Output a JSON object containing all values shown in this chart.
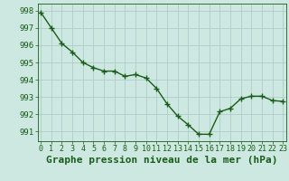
{
  "x": [
    0,
    1,
    2,
    3,
    4,
    5,
    6,
    7,
    8,
    9,
    10,
    11,
    12,
    13,
    14,
    15,
    16,
    17,
    18,
    19,
    20,
    21,
    22,
    23
  ],
  "y": [
    997.9,
    997.0,
    996.1,
    995.6,
    995.0,
    994.7,
    994.5,
    994.5,
    994.2,
    994.3,
    994.1,
    993.5,
    992.6,
    991.9,
    991.4,
    990.85,
    990.85,
    992.15,
    992.35,
    992.9,
    993.05,
    993.05,
    992.8,
    992.75
  ],
  "line_color": "#1a5c1a",
  "marker": "+",
  "marker_size": 4,
  "marker_lw": 1.0,
  "line_width": 1.0,
  "bg_color": "#cce8e0",
  "grid_color": "#b0ccc8",
  "xlabel": "Graphe pression niveau de la mer (hPa)",
  "xlabel_fontsize": 8,
  "xlabel_color": "#1a5c1a",
  "yticks": [
    991,
    992,
    993,
    994,
    995,
    996,
    997,
    998
  ],
  "xticks": [
    0,
    1,
    2,
    3,
    4,
    5,
    6,
    7,
    8,
    9,
    10,
    11,
    12,
    13,
    14,
    15,
    16,
    17,
    18,
    19,
    20,
    21,
    22,
    23
  ],
  "ylim": [
    990.45,
    998.4
  ],
  "xlim": [
    -0.3,
    23.3
  ],
  "ytick_fontsize": 6.5,
  "xtick_fontsize": 6.0,
  "tick_color": "#1a5c1a",
  "spine_color": "#1a5c1a"
}
